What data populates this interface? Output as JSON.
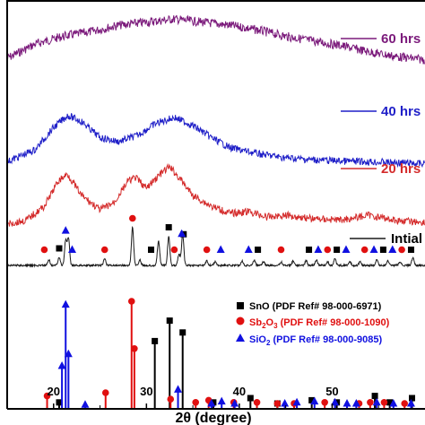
{
  "chart_data": {
    "type": "line",
    "title": "",
    "xlabel": "2θ (degree)",
    "ylabel": "",
    "xlim": [
      15,
      60
    ],
    "xticks": [
      20,
      30,
      40,
      50
    ],
    "grid": false,
    "series": [
      {
        "name": "60 hrs",
        "color": "#7b1a7b",
        "kind": "pattern",
        "x": [
          15,
          18,
          21,
          24,
          27,
          30,
          33,
          36,
          39,
          42,
          45,
          48,
          51,
          54,
          57,
          60
        ],
        "y": [
          1.0,
          1.45,
          1.7,
          1.85,
          2.05,
          2.15,
          2.25,
          2.15,
          2.05,
          1.9,
          1.7,
          1.55,
          1.4,
          1.2,
          1.05,
          0.95
        ]
      },
      {
        "name": "40 hrs",
        "color": "#1f1fc8",
        "kind": "pattern",
        "x": [
          15,
          18,
          20,
          21.5,
          23,
          25,
          27,
          29,
          31,
          33,
          35,
          37,
          39,
          42,
          45,
          48,
          51,
          54,
          57,
          60
        ],
        "y": [
          0.1,
          0.4,
          0.95,
          1.25,
          1.1,
          0.7,
          0.6,
          0.75,
          1.05,
          1.2,
          1.0,
          0.7,
          0.45,
          0.3,
          0.2,
          0.15,
          0.12,
          0.1,
          0.08,
          0.05
        ]
      },
      {
        "name": "20 hrs",
        "color": "#d42b2b",
        "kind": "pattern",
        "x": [
          15,
          17,
          19,
          20.5,
          21.5,
          23,
          25,
          26.5,
          28,
          28.8,
          30,
          31.5,
          32.5,
          33.5,
          35,
          37,
          39,
          41,
          43,
          45,
          48,
          51,
          54,
          57,
          60
        ],
        "y": [
          0.0,
          0.1,
          0.5,
          1.2,
          1.4,
          0.8,
          0.4,
          0.6,
          1.2,
          1.3,
          1.0,
          1.4,
          1.6,
          1.3,
          0.8,
          0.5,
          0.3,
          0.35,
          0.2,
          0.25,
          0.15,
          0.12,
          0.25,
          0.1,
          0.05
        ]
      },
      {
        "name": "Intial",
        "color": "#1a1a1a",
        "kind": "sticks",
        "peaks_x": [
          19.5,
          20.6,
          21.3,
          21.6,
          25.5,
          28.5,
          29.3,
          31.3,
          32.4,
          33.5,
          33.9,
          36.5,
          37.4,
          40.3,
          41.6,
          42.6,
          44.5,
          45.8,
          47.2,
          48.3,
          49.5,
          50.3,
          51.9,
          53.0,
          54.8,
          56.0,
          57.3,
          58.7
        ],
        "peaks_y": [
          0.12,
          0.18,
          0.55,
          0.6,
          0.15,
          0.85,
          0.12,
          0.55,
          0.65,
          0.25,
          0.7,
          0.1,
          0.08,
          0.1,
          0.12,
          0.08,
          0.08,
          0.1,
          0.1,
          0.12,
          0.08,
          0.15,
          0.08,
          0.08,
          0.12,
          0.1,
          0.08,
          0.18
        ]
      }
    ],
    "markers": [
      {
        "series": "Intial",
        "symbol": "square",
        "color": "#000000",
        "x": [
          20.6,
          30.5,
          32.4,
          34.0,
          42.0,
          47.5,
          50.5,
          55.5,
          58.5
        ]
      },
      {
        "series": "Intial",
        "symbol": "circle",
        "color": "#e01010",
        "x": [
          19.0,
          25.5,
          28.5,
          33.0,
          36.5,
          44.5,
          49.5,
          53.5,
          57.5
        ]
      },
      {
        "series": "Intial",
        "symbol": "triangle",
        "color": "#1010e0",
        "x": [
          21.3,
          22.0,
          33.8,
          38.0,
          41.0,
          48.5,
          51.5,
          54.5,
          56.5
        ]
      }
    ],
    "reference_patterns": [
      {
        "name": "SnO (PDF Ref# 98-000-6971)",
        "symbol": "square",
        "color": "#000000",
        "x": [
          20.6,
          30.9,
          32.5,
          33.9,
          37.2,
          41.2,
          44.1,
          47.8,
          50.5,
          54.6,
          56.2,
          58.6
        ],
        "y": [
          0.06,
          0.63,
          0.82,
          0.71,
          0.06,
          0.1,
          0.05,
          0.08,
          0.06,
          0.12,
          0.06,
          0.1
        ]
      },
      {
        "name": "Sb2O3 (PDF Ref# 98-000-1090)",
        "symbol": "circle",
        "color": "#e01010",
        "x": [
          19.3,
          25.6,
          28.4,
          28.7,
          32.6,
          35.3,
          36.7,
          39.4,
          41.9,
          44.1,
          45.9,
          49.2,
          52.9,
          54.1,
          55.6,
          57.8
        ],
        "y": [
          0.12,
          0.15,
          1.0,
          0.56,
          0.09,
          0.06,
          0.08,
          0.06,
          0.06,
          0.05,
          0.05,
          0.06,
          0.05,
          0.06,
          0.06,
          0.05
        ]
      },
      {
        "name": "SiO2 (PDF Ref# 98-000-9085)",
        "symbol": "triangle",
        "color": "#1010e0",
        "x": [
          20.9,
          21.3,
          21.6,
          23.4,
          33.4,
          37.0,
          38.1,
          39.5,
          44.9,
          46.2,
          48.1,
          50.3,
          51.6,
          52.6,
          54.8,
          56.6,
          58.5
        ],
        "y": [
          0.4,
          0.97,
          0.51,
          0.04,
          0.18,
          0.05,
          0.07,
          0.05,
          0.05,
          0.06,
          0.07,
          0.06,
          0.05,
          0.05,
          0.06,
          0.05,
          0.05
        ]
      }
    ]
  },
  "labels": {
    "s60": "60 hrs",
    "s40": "40 hrs",
    "s20": "20 hrs",
    "sInit": "Intial",
    "legend_sno": "SnO (PDF Ref# 98-000-6971)",
    "legend_sb_pre": "Sb",
    "legend_sb_sub1": "2",
    "legend_sb_mid": "O",
    "legend_sb_sub2": "3",
    "legend_sb_post": " (PDF Ref# 98-000-1090)",
    "legend_si_pre": "SiO",
    "legend_si_sub": "2",
    "legend_si_post": " (PDF Ref# 98-000-9085)",
    "xlabel": "2θ (degree)",
    "xticks": [
      "20",
      "30",
      "40",
      "50"
    ]
  }
}
